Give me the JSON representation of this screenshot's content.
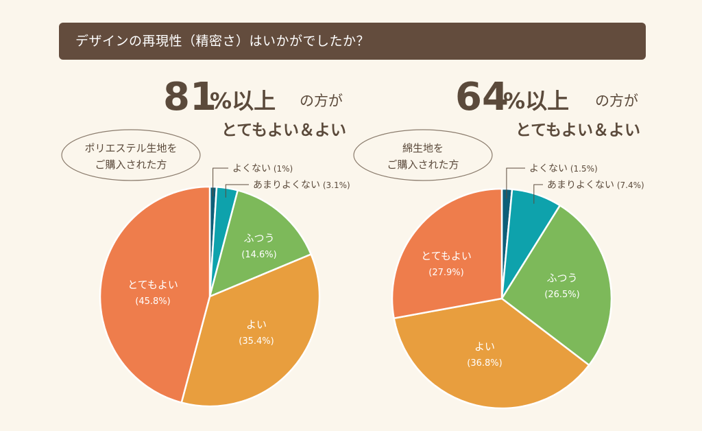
{
  "question": "デザインの再現性（精密さ）はいかがでしたか？",
  "colors": {
    "verygood": "#ee7d4c",
    "good": "#e89e3e",
    "normal": "#7db95a",
    "ratherbad": "#0ea2ac",
    "bad": "#0e5f78"
  },
  "chart_data": [
    {
      "type": "pie",
      "headline": {
        "percent": "81",
        "percent_sign": "%",
        "suffix": "以上",
        "tail": "の方が",
        "line2": "とてもよい＆よい"
      },
      "bubble": [
        "ポリエステル生地を",
        "ご購入された方"
      ],
      "slices": [
        {
          "key": "bad",
          "label": "よくない",
          "value": 1.0,
          "value_text": "(1%)"
        },
        {
          "key": "ratherbad",
          "label": "あまりよくない",
          "value": 3.1,
          "value_text": "(3.1%)"
        },
        {
          "key": "normal",
          "label": "ふつう",
          "value": 14.6,
          "value_text": "(14.6%)"
        },
        {
          "key": "good",
          "label": "よい",
          "value": 35.4,
          "value_text": "(35.4%)"
        },
        {
          "key": "verygood",
          "label": "とてもよい",
          "value": 45.8,
          "value_text": "(45.8%)"
        }
      ]
    },
    {
      "type": "pie",
      "headline": {
        "percent": "64",
        "percent_sign": "%",
        "suffix": "以上",
        "tail": "の方が",
        "line2": "とてもよい＆よい"
      },
      "bubble": [
        "綿生地を",
        "ご購入された方"
      ],
      "slices": [
        {
          "key": "bad",
          "label": "よくない",
          "value": 1.5,
          "value_text": "(1.5%)"
        },
        {
          "key": "ratherbad",
          "label": "あまりよくない",
          "value": 7.4,
          "value_text": "(7.4%)"
        },
        {
          "key": "normal",
          "label": "ふつう",
          "value": 26.5,
          "value_text": "(26.5%)"
        },
        {
          "key": "good",
          "label": "よい",
          "value": 36.8,
          "value_text": "(36.8%)"
        },
        {
          "key": "verygood",
          "label": "とてもよい",
          "value": 27.9,
          "value_text": "(27.9%)"
        }
      ]
    }
  ]
}
